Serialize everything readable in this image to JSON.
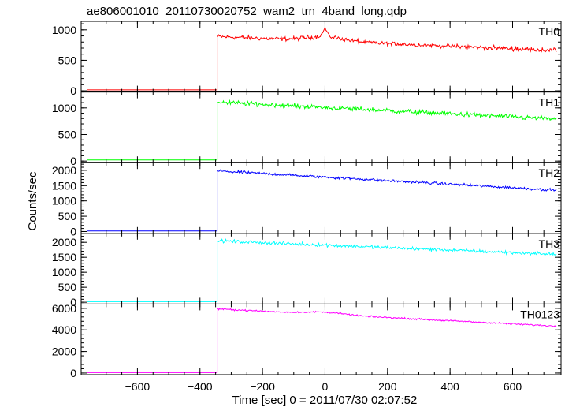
{
  "title": "ae806001010_20110730020752_wam2_trn_4band_long.qdp",
  "ylabel": "Counts/sec",
  "xlabel": "Time [sec] 0 = 2011/07/30 02:07:52",
  "chart_data": {
    "type": "line",
    "xlim": [
      -780,
      755
    ],
    "x_ticks": [
      -600,
      -400,
      -200,
      0,
      200,
      400,
      600
    ],
    "step_time": -345,
    "panels": [
      {
        "name": "TH0",
        "color": "#ff0000",
        "ylim": [
          -20,
          1140
        ],
        "y_ticks": [
          0,
          500,
          1000
        ],
        "before": 15,
        "start": 890,
        "end": 660,
        "noise": 55,
        "spike": {
          "x": 0,
          "peak": 1070,
          "width": 22,
          "bump": 70
        }
      },
      {
        "name": "TH1",
        "color": "#00ff00",
        "ylim": [
          -30,
          1300
        ],
        "y_ticks": [
          0,
          500,
          1000
        ],
        "before": 20,
        "start": 1110,
        "end": 790,
        "noise": 70
      },
      {
        "name": "TH2",
        "color": "#0000ff",
        "ylim": [
          -60,
          2250
        ],
        "y_ticks": [
          0,
          500,
          1000,
          1500,
          2000
        ],
        "before": 20,
        "start": 1980,
        "end": 1350,
        "noise": 70
      },
      {
        "name": "TH3",
        "color": "#00ffff",
        "ylim": [
          -60,
          2300
        ],
        "y_ticks": [
          0,
          500,
          1000,
          1500,
          2000
        ],
        "before": 20,
        "start": 2050,
        "end": 1600,
        "noise": 85
      },
      {
        "name": "TH0123",
        "color": "#ff00ff",
        "ylim": [
          -150,
          6400
        ],
        "y_ticks": [
          0,
          2000,
          4000,
          6000
        ],
        "before": 40,
        "start": 5950,
        "end": 4350,
        "noise": 110,
        "spike": {
          "x": 0,
          "peak": 5550,
          "width": 30,
          "bump": 200
        }
      }
    ]
  }
}
